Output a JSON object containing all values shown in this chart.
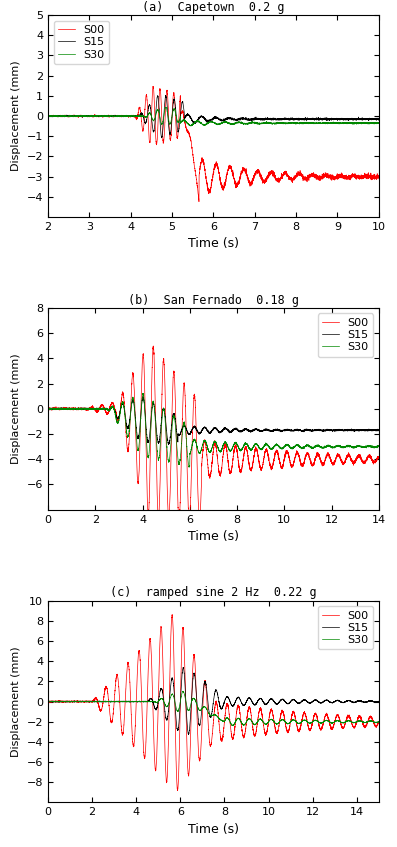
{
  "subplots": [
    {
      "title": "(a)  Capetown  0.2 g",
      "xlabel": "Time (s)",
      "ylabel": "Displacement (mm)",
      "xlim": [
        2,
        10
      ],
      "ylim": [
        -5,
        5
      ],
      "yticks": [
        -4,
        -3,
        -2,
        -1,
        0,
        1,
        2,
        3,
        4,
        5
      ],
      "xticks": [
        2,
        3,
        4,
        5,
        6,
        7,
        8,
        9,
        10
      ],
      "legend_loc": "upper left"
    },
    {
      "title": "(b)  San Fernado  0.18 g",
      "xlabel": "Time (s)",
      "ylabel": "Displacement (mm)",
      "xlim": [
        0,
        14
      ],
      "ylim": [
        -8,
        8
      ],
      "yticks": [
        -6,
        -4,
        -2,
        0,
        2,
        4,
        6,
        8
      ],
      "xticks": [
        0,
        2,
        4,
        6,
        8,
        10,
        12,
        14
      ],
      "legend_loc": "upper right"
    },
    {
      "title": "(c)  ramped sine 2 Hz  0.22 g",
      "xlabel": "Time (s)",
      "ylabel": "Displacement (mm)",
      "xlim": [
        0,
        15
      ],
      "ylim": [
        -10,
        10
      ],
      "yticks": [
        -8,
        -6,
        -4,
        -2,
        0,
        2,
        4,
        6,
        8,
        10
      ],
      "xticks": [
        0,
        2,
        4,
        6,
        8,
        10,
        12,
        14
      ],
      "legend_loc": "upper right"
    }
  ],
  "colors": {
    "S00": "#ff0000",
    "S15": "#000000",
    "S30": "#008800"
  },
  "linewidth": 0.5,
  "dt": 0.002
}
